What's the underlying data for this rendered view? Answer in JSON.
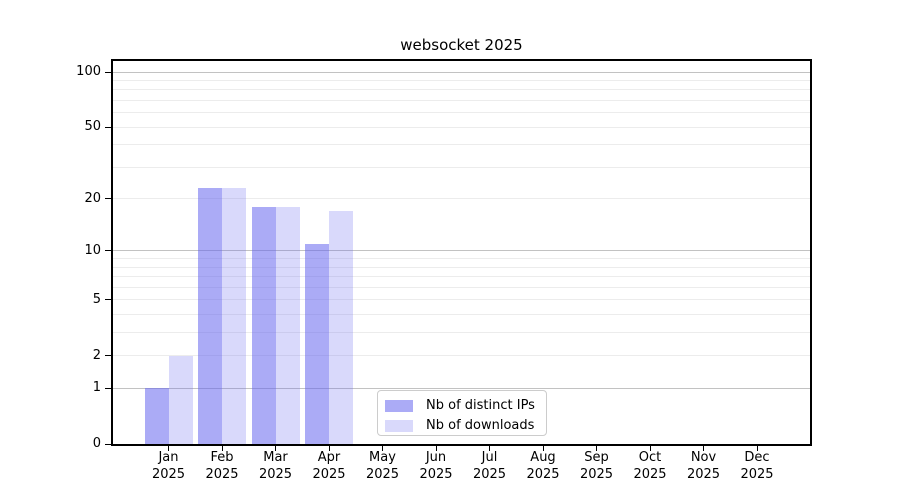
{
  "title": "websocket 2025",
  "chart_data": {
    "type": "bar",
    "scale": "log1p",
    "title": "websocket 2025",
    "categories": [
      "Jan",
      "Feb",
      "Mar",
      "Apr",
      "May",
      "Jun",
      "Jul",
      "Aug",
      "Sep",
      "Oct",
      "Nov",
      "Dec"
    ],
    "year": "2025",
    "series": [
      {
        "name": "Nb of distinct IPs",
        "color": "rgba(102,102,238,0.55)",
        "values": [
          1,
          23,
          18,
          11,
          0,
          0,
          0,
          0,
          0,
          0,
          0,
          0
        ]
      },
      {
        "name": "Nb of downloads",
        "color": "rgba(102,102,238,0.25)",
        "values": [
          2,
          23,
          18,
          17,
          0,
          0,
          0,
          0,
          0,
          0,
          0,
          0
        ]
      }
    ],
    "yticks": [
      0,
      1,
      2,
      5,
      10,
      20,
      50,
      100
    ],
    "ylim": [
      0,
      115
    ],
    "grid": true,
    "legend_position": "lower-center",
    "colors": {
      "bar_dark": "#aaaaf6",
      "bar_light": "#d9d9fb",
      "grid_major": "#c2c2c2",
      "grid_minor": "#ececec",
      "axis": "#000000"
    }
  }
}
